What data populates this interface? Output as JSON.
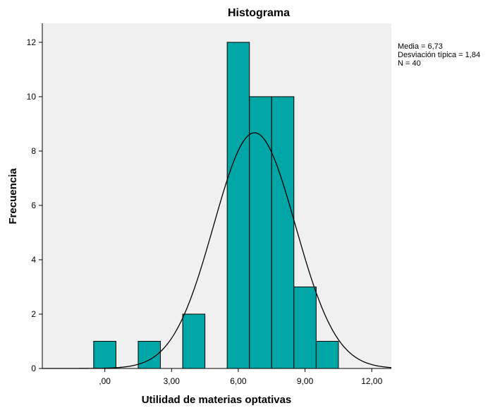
{
  "chart_data": {
    "type": "histogram",
    "title": "Histograma",
    "xlabel": "Utilidad de materias optativas",
    "ylabel": "Frecuencia",
    "xlim": [
      -2.81,
      12.88
    ],
    "ylim": [
      0,
      12.7
    ],
    "x_ticks": [
      {
        "value": 0,
        "label": ",00"
      },
      {
        "value": 3,
        "label": "3,00"
      },
      {
        "value": 6,
        "label": "6,00"
      },
      {
        "value": 9,
        "label": "9,00"
      },
      {
        "value": 12,
        "label": "12,00"
      }
    ],
    "y_ticks": [
      0,
      2,
      4,
      6,
      8,
      10,
      12
    ],
    "bins": [
      {
        "start": -0.5,
        "end": 0.5,
        "count": 1
      },
      {
        "start": 1.5,
        "end": 2.5,
        "count": 1
      },
      {
        "start": 3.5,
        "end": 4.5,
        "count": 2
      },
      {
        "start": 5.5,
        "end": 6.5,
        "count": 12
      },
      {
        "start": 6.5,
        "end": 7.5,
        "count": 10
      },
      {
        "start": 7.5,
        "end": 8.5,
        "count": 10
      },
      {
        "start": 8.5,
        "end": 9.5,
        "count": 3
      },
      {
        "start": 9.5,
        "end": 10.5,
        "count": 1
      }
    ],
    "bin_width": 1,
    "normal_curve": {
      "mean": 6.73,
      "sd": 1.84,
      "n": 40
    },
    "stats_lines": [
      "Media = 6,73",
      "Desviación típica = 1,84",
      "N = 40"
    ],
    "colors": {
      "bar_fill": "#00a5a5",
      "bar_stroke": "#000000",
      "plot_background": "#f0f0f0",
      "curve": "#000000"
    }
  }
}
